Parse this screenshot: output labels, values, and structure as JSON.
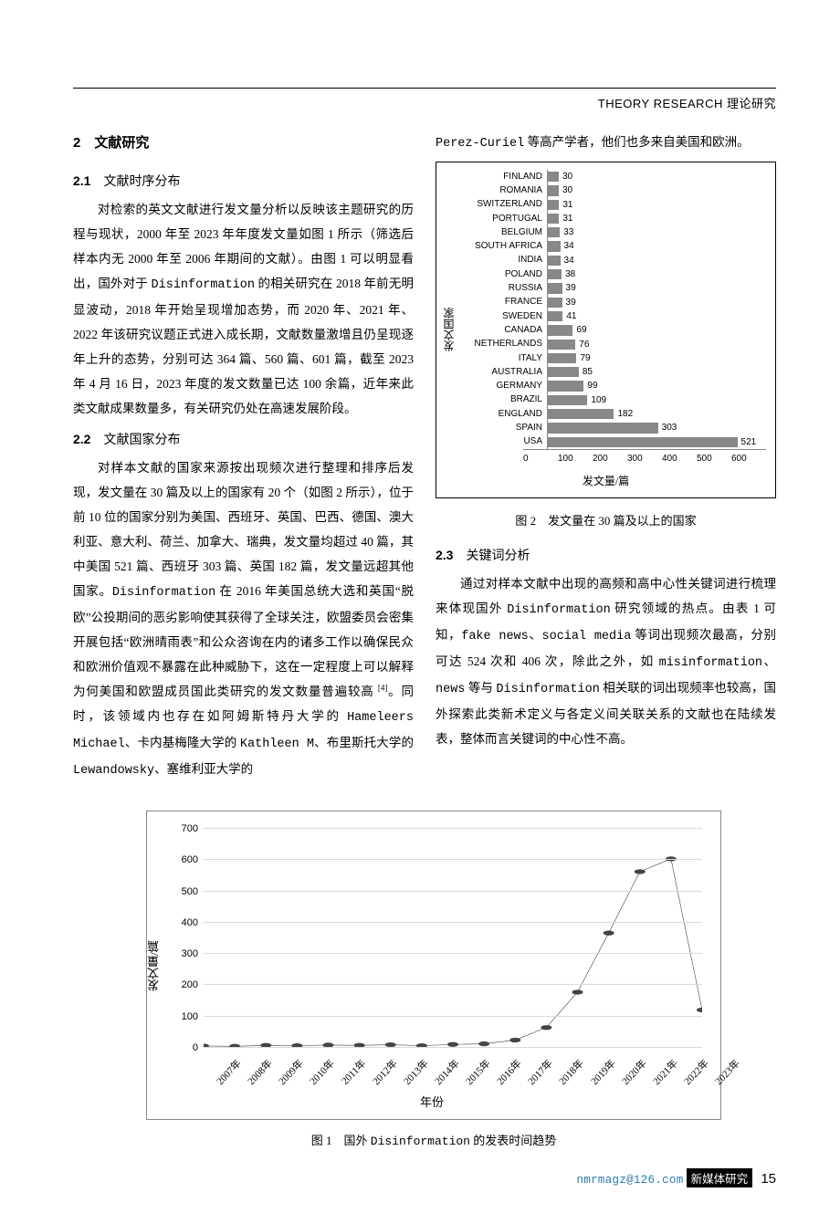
{
  "header": {
    "en": "THEORY RESEARCH",
    "cn": " 理论研究"
  },
  "sec2": {
    "title": "2　文献研究",
    "s1": {
      "title": "2.1　文献时序分布",
      "p1a": "对检索的英文文献进行发文量分析以反映该主题研究的历程与现状，2000 年至 2023 年年度发文量如图 1 所示（筛选后样本内无 2000 年至 2006 年期间的文献）。由图 1 可以明显看出，国外对于 ",
      "mono1": "Disinformation",
      "p1b": " 的相关研究在 2018 年前无明显波动，2018 年开始呈现增加态势，而 2020 年、2021 年、2022 年该研究议题正式进入成长期，文献数量激增且仍呈现逐年上升的态势，分别可达 364 篇、560 篇、601 篇，截至 2023 年 4 月 16 日，2023 年度的发文数量已达 100 余篇，近年来此类文献成果数量多，有关研究仍处在高速发展阶段。"
    },
    "s2": {
      "title": "2.2　文献国家分布",
      "p1a": "对样本文献的国家来源按出现频次进行整理和排序后发现，发文量在 30 篇及以上的国家有 20 个（如图 2 所示），位于前 10 位的国家分别为美国、西班牙、英国、巴西、德国、澳大利亚、意大利、荷兰、加拿大、瑞典，发文量均超过 40 篇，其中美国 521 篇、西班牙 303 篇、英国 182 篇，发文量远超其他国家。",
      "mono1": "Disinformation",
      "p1b": " 在 2016 年美国总统大选和英国“脱欧”公投期间的恶劣影响使其获得了全球关注，欧盟委员会密集开展包括“欧洲晴雨表”和公众咨询在内的诸多工作以确保民众和欧洲价值观不暴露在此种威胁下，这在一定程度上可以解释为何美国和欧盟成员国此类研究的发文数量普遍较高 ",
      "ref": "[4]",
      "p1c": "。同时，该领域内也存在如阿姆斯特丹大学的 ",
      "mono2": "Hameleers Michael",
      "p1d": "、卡内基梅隆大学的 ",
      "mono3": "Kathleen M",
      "p1e": "、布里斯托大学的 ",
      "mono4": "Lewandowsky",
      "p1f": "、塞维利亚大学的 ",
      "mono5": "",
      "p1g": ""
    },
    "s3": {
      "title": "2.3　关键词分析",
      "p1a": "通过对样本文献中出现的高频和高中心性关键词进行梳理来体现国外 ",
      "mono1": "Disinformation",
      "p1b": " 研究领域的热点。由表 1 可知，",
      "mono2": "fake news、social media",
      "p1c": " 等词出现频次最高，分别可达 524 次和 406 次，除此之外，如 ",
      "mono3": "misinformation、news",
      "p1d": " 等与 ",
      "mono4": "Disinformation",
      "p1e": " 相关联的词出现频率也较高，国外探索此类新术定义与各定义间关联关系的文献也在陆续发表，整体而言关键词的中心性不高。"
    }
  },
  "right": {
    "top": {
      "mono": "Perez-Curiel",
      "rest": " 等高产学者，他们也多来自美国和欧洲。"
    }
  },
  "fig2": {
    "type": "bar-horizontal",
    "caption": "图 2　发文量在 30 篇及以上的国家",
    "ylabel": "发文国家",
    "xlabel": "发文量/篇",
    "xmax": 600,
    "xtick_step": 100,
    "bar_color": "#888888",
    "background": "#ffffff",
    "label_fontsize": 10,
    "data": [
      {
        "country": "FINLAND",
        "value": 30
      },
      {
        "country": "ROMANIA",
        "value": 30
      },
      {
        "country": "SWITZERLAND",
        "value": 31
      },
      {
        "country": "PORTUGAL",
        "value": 31
      },
      {
        "country": "BELGIUM",
        "value": 33
      },
      {
        "country": "SOUTH AFRICA",
        "value": 34
      },
      {
        "country": "INDIA",
        "value": 34
      },
      {
        "country": "POLAND",
        "value": 38
      },
      {
        "country": "RUSSIA",
        "value": 39
      },
      {
        "country": "FRANCE",
        "value": 39
      },
      {
        "country": "SWEDEN",
        "value": 41
      },
      {
        "country": "CANADA",
        "value": 69
      },
      {
        "country": "NETHERLANDS",
        "value": 76
      },
      {
        "country": "ITALY",
        "value": 79
      },
      {
        "country": "AUSTRALIA",
        "value": 85
      },
      {
        "country": "GERMANY",
        "value": 99
      },
      {
        "country": "BRAZIL",
        "value": 109
      },
      {
        "country": "ENGLAND",
        "value": 182
      },
      {
        "country": "SPAIN",
        "value": 303
      },
      {
        "country": "USA",
        "value": 521
      }
    ]
  },
  "fig1": {
    "type": "line",
    "caption_a": "图 1　国外 ",
    "caption_mono": "Disinformation",
    "caption_b": " 的发表时间趋势",
    "ylabel": "发文量/篇",
    "xlabel": "年份",
    "ymax": 700,
    "ytick_step": 100,
    "grid_color": "#d9d9d9",
    "line_color": "#444444",
    "marker_fill": "#444444",
    "marker_radius": 3.2,
    "background": "#ffffff",
    "years": [
      "2007年",
      "2008年",
      "2009年",
      "2010年",
      "2011年",
      "2012年",
      "2013年",
      "2014年",
      "2015年",
      "2016年",
      "2017年",
      "2018年",
      "2019年",
      "2020年",
      "2021年",
      "2022年",
      "2023年"
    ],
    "values": [
      3,
      2,
      5,
      4,
      6,
      5,
      7,
      4,
      8,
      10,
      22,
      62,
      175,
      364,
      560,
      601,
      118
    ]
  },
  "footer": {
    "email": "nmrmagz@126.com",
    "journal": "新媒体研究",
    "page": "15"
  }
}
